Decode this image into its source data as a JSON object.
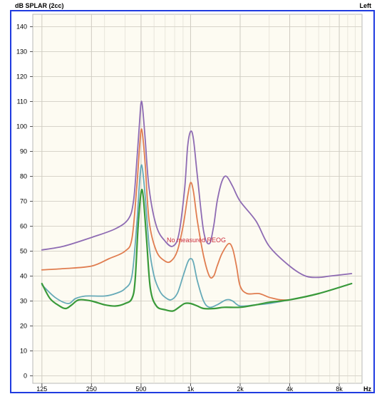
{
  "chart_data": {
    "type": "line",
    "title": "dB SPLAR (2cc)",
    "channel": "Left",
    "xlabel": "Hz",
    "ylabel": "",
    "x_scale": "log",
    "xlim": [
      110,
      11000
    ],
    "ylim": [
      -3,
      145
    ],
    "x_ticks": [
      {
        "value": 125,
        "label": "125"
      },
      {
        "value": 250,
        "label": "250"
      },
      {
        "value": 500,
        "label": "500"
      },
      {
        "value": 1000,
        "label": "1k"
      },
      {
        "value": 2000,
        "label": "2k"
      },
      {
        "value": 4000,
        "label": "4k"
      },
      {
        "value": 8000,
        "label": "8k"
      }
    ],
    "y_ticks": [
      0,
      10,
      20,
      30,
      40,
      50,
      60,
      70,
      80,
      90,
      100,
      110,
      120,
      130,
      140
    ],
    "annotation": "No measured REOG",
    "grid": true,
    "background_color": "#fdfbf2",
    "border_color": "#1f3be0",
    "series": [
      {
        "color": "#8e6bb3",
        "points": [
          [
            125,
            50.5
          ],
          [
            170,
            52
          ],
          [
            250,
            55.5
          ],
          [
            350,
            59
          ],
          [
            420,
            63
          ],
          [
            450,
            70
          ],
          [
            470,
            85
          ],
          [
            490,
            102
          ],
          [
            500,
            109.5
          ],
          [
            510,
            108
          ],
          [
            530,
            95
          ],
          [
            560,
            75
          ],
          [
            620,
            60
          ],
          [
            700,
            54
          ],
          [
            780,
            52
          ],
          [
            850,
            57
          ],
          [
            920,
            75
          ],
          [
            960,
            92
          ],
          [
            1000,
            98
          ],
          [
            1040,
            95
          ],
          [
            1100,
            80
          ],
          [
            1200,
            58
          ],
          [
            1300,
            53
          ],
          [
            1380,
            60
          ],
          [
            1450,
            70
          ],
          [
            1550,
            78
          ],
          [
            1650,
            80
          ],
          [
            1800,
            76
          ],
          [
            2000,
            70
          ],
          [
            2500,
            62
          ],
          [
            3000,
            52
          ],
          [
            4000,
            44
          ],
          [
            5000,
            40
          ],
          [
            6000,
            39.5
          ],
          [
            7000,
            40
          ],
          [
            9500,
            41
          ]
        ]
      },
      {
        "color": "#e07d50",
        "points": [
          [
            125,
            42.5
          ],
          [
            170,
            43
          ],
          [
            250,
            44
          ],
          [
            320,
            47
          ],
          [
            400,
            50
          ],
          [
            440,
            55
          ],
          [
            470,
            75
          ],
          [
            490,
            92
          ],
          [
            500,
            98.5
          ],
          [
            510,
            97
          ],
          [
            530,
            85
          ],
          [
            560,
            62
          ],
          [
            620,
            50
          ],
          [
            700,
            46
          ],
          [
            760,
            46
          ],
          [
            830,
            50
          ],
          [
            900,
            60
          ],
          [
            960,
            72
          ],
          [
            1000,
            77.5
          ],
          [
            1040,
            74
          ],
          [
            1100,
            62
          ],
          [
            1200,
            48
          ],
          [
            1300,
            40
          ],
          [
            1380,
            40
          ],
          [
            1450,
            44
          ],
          [
            1550,
            49
          ],
          [
            1700,
            53
          ],
          [
            1800,
            51
          ],
          [
            1900,
            44
          ],
          [
            2000,
            36
          ],
          [
            2200,
            33
          ],
          [
            2600,
            33
          ],
          [
            3000,
            31.5
          ],
          [
            3500,
            30.5
          ],
          [
            4000,
            30.5
          ]
        ]
      },
      {
        "color": "#66aab8",
        "points": [
          [
            125,
            36.5
          ],
          [
            150,
            31.5
          ],
          [
            180,
            29
          ],
          [
            200,
            31
          ],
          [
            230,
            32
          ],
          [
            300,
            32
          ],
          [
            350,
            33
          ],
          [
            400,
            35
          ],
          [
            440,
            40
          ],
          [
            470,
            60
          ],
          [
            490,
            78
          ],
          [
            500,
            84
          ],
          [
            510,
            83
          ],
          [
            530,
            72
          ],
          [
            560,
            52
          ],
          [
            600,
            40
          ],
          [
            650,
            34
          ],
          [
            700,
            31.5
          ],
          [
            760,
            30.5
          ],
          [
            830,
            33
          ],
          [
            900,
            40
          ],
          [
            960,
            45.5
          ],
          [
            1000,
            47
          ],
          [
            1040,
            45.5
          ],
          [
            1100,
            38
          ],
          [
            1200,
            30
          ],
          [
            1300,
            27.5
          ],
          [
            1450,
            28.5
          ],
          [
            1650,
            30.5
          ],
          [
            1800,
            30
          ],
          [
            2000,
            28
          ],
          [
            2500,
            28.5
          ],
          [
            3000,
            29
          ],
          [
            4000,
            30.5
          ],
          [
            6000,
            33
          ],
          [
            9500,
            37
          ]
        ]
      },
      {
        "color": "#3a9a3a",
        "points": [
          [
            125,
            37
          ],
          [
            140,
            31
          ],
          [
            160,
            28
          ],
          [
            175,
            27
          ],
          [
            190,
            28.5
          ],
          [
            210,
            30.5
          ],
          [
            250,
            30
          ],
          [
            300,
            28.5
          ],
          [
            350,
            28
          ],
          [
            400,
            29
          ],
          [
            440,
            31
          ],
          [
            460,
            38
          ],
          [
            480,
            60
          ],
          [
            500,
            73.5
          ],
          [
            515,
            72
          ],
          [
            540,
            55
          ],
          [
            570,
            35
          ],
          [
            620,
            28
          ],
          [
            700,
            26.5
          ],
          [
            780,
            26
          ],
          [
            850,
            27.5
          ],
          [
            920,
            29
          ],
          [
            1000,
            29
          ],
          [
            1100,
            28
          ],
          [
            1200,
            27
          ],
          [
            1400,
            27
          ],
          [
            1600,
            27.5
          ],
          [
            2000,
            27.5
          ],
          [
            2500,
            28.5
          ],
          [
            3000,
            29.5
          ],
          [
            4000,
            30.5
          ],
          [
            6000,
            33
          ],
          [
            9500,
            37
          ]
        ]
      }
    ]
  }
}
